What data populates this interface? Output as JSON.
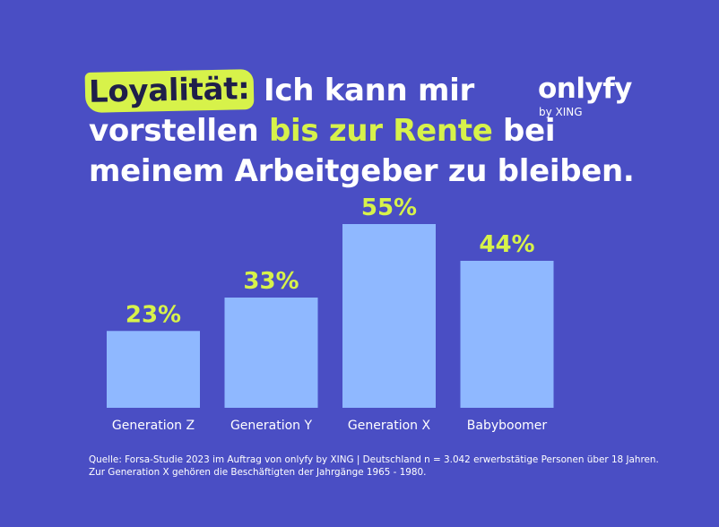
{
  "headline": {
    "highlight": "Loyalität:",
    "part1": "Ich kann mir",
    "part2": "vorstellen",
    "accent": "bis zur Rente",
    "part3": "bei",
    "line3": "meinem Arbeitgeber zu bleiben."
  },
  "logo": {
    "name": "onlyfy",
    "sub": "by XING"
  },
  "chart_data": {
    "type": "bar",
    "categories": [
      "Generation Z",
      "Generation Y",
      "Generation X",
      "Babyboomer"
    ],
    "values": [
      23,
      33,
      55,
      44
    ],
    "value_labels": [
      "23%",
      "33%",
      "55%",
      "44%"
    ],
    "title": "",
    "xlabel": "",
    "ylabel": "",
    "ylim": [
      0,
      60
    ],
    "grid": false,
    "legend": "none",
    "bar_color": "#8fb8ff",
    "label_color": "#d7f24a"
  },
  "source": {
    "line1": "Quelle: Forsa-Studie 2023 im Auftrag von onlyfy by XING | Deutschland n = 3.042 erwerbstätige Personen über 18 Jahren.",
    "line2": "Zur Generation X gehören die Beschäftigten der Jahrgänge 1965 - 1980."
  },
  "colors": {
    "background": "#4a4ec4",
    "accent": "#d7f24a",
    "bar": "#8fb8ff",
    "text": "#ffffff"
  }
}
